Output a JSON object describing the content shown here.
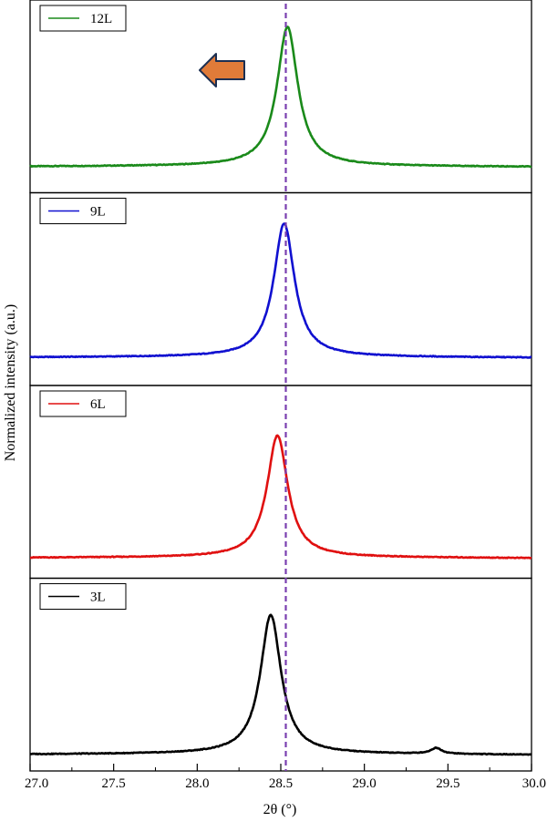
{
  "chart_data": {
    "type": "line",
    "layout": "stacked-panels",
    "xlabel": "2θ (°)",
    "ylabel": "Normalized intensity (a.u.)",
    "xlim": [
      27.0,
      30.0
    ],
    "xticks": [
      "27.0",
      "27.5",
      "28.0",
      "28.5",
      "29.0",
      "29.5",
      "30.0"
    ],
    "grid": false,
    "legend_position": "top-left",
    "reference_line": {
      "x": 28.53,
      "style": "dashed",
      "color": "#7a3fb0"
    },
    "annotation": {
      "type": "arrow",
      "direction": "left",
      "color": "#e07b39"
    },
    "series": [
      {
        "name": "12L",
        "color": "#1a8a1a",
        "peak_center": 28.54,
        "peak_height": 0.86,
        "baseline": 0.14,
        "points": [
          [
            27.0,
            0.14
          ],
          [
            27.5,
            0.145
          ],
          [
            28.0,
            0.15
          ],
          [
            28.3,
            0.19
          ],
          [
            28.45,
            0.5
          ],
          [
            28.54,
            0.86
          ],
          [
            28.62,
            0.55
          ],
          [
            28.75,
            0.22
          ],
          [
            29.0,
            0.15
          ],
          [
            29.5,
            0.14
          ],
          [
            30.0,
            0.13
          ]
        ]
      },
      {
        "name": "9L",
        "color": "#1010d0",
        "peak_center": 28.52,
        "peak_height": 0.84,
        "baseline": 0.15,
        "points": [
          [
            27.0,
            0.15
          ],
          [
            27.5,
            0.15
          ],
          [
            28.0,
            0.16
          ],
          [
            28.3,
            0.21
          ],
          [
            28.43,
            0.5
          ],
          [
            28.52,
            0.84
          ],
          [
            28.61,
            0.55
          ],
          [
            28.75,
            0.21
          ],
          [
            29.0,
            0.16
          ],
          [
            29.5,
            0.15
          ],
          [
            30.0,
            0.14
          ]
        ]
      },
      {
        "name": "6L",
        "color": "#e01010",
        "peak_center": 28.48,
        "peak_height": 0.74,
        "baseline": 0.11,
        "points": [
          [
            27.0,
            0.11
          ],
          [
            27.5,
            0.11
          ],
          [
            28.0,
            0.12
          ],
          [
            28.3,
            0.17
          ],
          [
            28.4,
            0.45
          ],
          [
            28.48,
            0.74
          ],
          [
            28.58,
            0.45
          ],
          [
            28.7,
            0.17
          ],
          [
            29.0,
            0.11
          ],
          [
            29.5,
            0.1
          ],
          [
            30.0,
            0.1
          ]
        ]
      },
      {
        "name": "3L",
        "color": "#000000",
        "peak_center": 28.44,
        "peak_height": 0.81,
        "baseline": 0.09,
        "points": [
          [
            27.0,
            0.09
          ],
          [
            27.5,
            0.1
          ],
          [
            28.0,
            0.11
          ],
          [
            28.25,
            0.15
          ],
          [
            28.37,
            0.5
          ],
          [
            28.44,
            0.81
          ],
          [
            28.52,
            0.5
          ],
          [
            28.65,
            0.15
          ],
          [
            29.0,
            0.1
          ],
          [
            29.43,
            0.12
          ],
          [
            30.0,
            0.08
          ]
        ]
      }
    ]
  }
}
